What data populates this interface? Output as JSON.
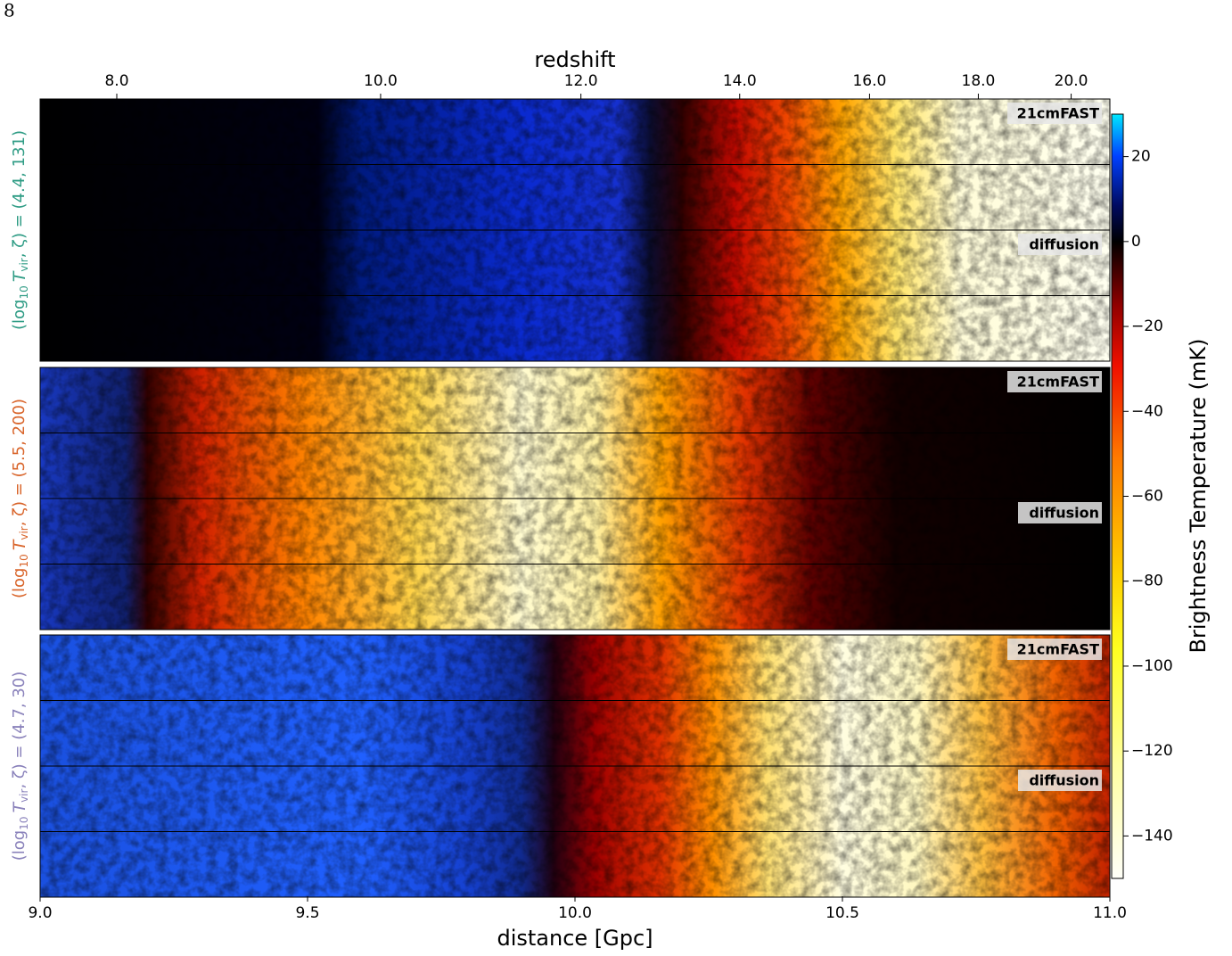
{
  "page_number": "8",
  "figure": {
    "top_axis": {
      "label": "redshift",
      "ticks": [
        {
          "value": 8,
          "label": "8.0"
        },
        {
          "value": 10,
          "label": "10.0"
        },
        {
          "value": 12,
          "label": "12.0"
        },
        {
          "value": 14,
          "label": "14.0"
        },
        {
          "value": 16,
          "label": "16.0"
        },
        {
          "value": 18,
          "label": "18.0"
        },
        {
          "value": 20,
          "label": "20.0"
        }
      ]
    },
    "bottom_axis": {
      "label": "distance [Gpc]",
      "xlim": [
        9,
        11
      ],
      "ticks": [
        {
          "value": 9,
          "label": "9.0"
        },
        {
          "value": 9.5,
          "label": "9.5"
        },
        {
          "value": 10,
          "label": "10.0"
        },
        {
          "value": 10.5,
          "label": "10.5"
        },
        {
          "value": 11,
          "label": "11.0"
        }
      ]
    },
    "colorbar": {
      "label": "Brightness Temperature (mK)",
      "lim": [
        -150,
        30
      ],
      "ticks": [
        {
          "value": 20,
          "label": "20"
        },
        0,
        {
          "value": -20,
          "label": "−20"
        },
        {
          "value": -40,
          "label": "−40"
        },
        {
          "value": -60,
          "label": "−60"
        },
        {
          "value": -80,
          "label": "−80"
        },
        {
          "value": -100,
          "label": "−100"
        },
        {
          "value": -120,
          "label": "−120"
        },
        {
          "value": -140,
          "label": "−140"
        }
      ]
    },
    "ylabel_parts": [
      "(log",
      "10",
      "T",
      "vir",
      ", ζ) = "
    ],
    "tags": [
      "21cmFAST",
      "diffusion"
    ],
    "panels": [
      {
        "params": "(4.4, 131)",
        "color": "#2f9c85"
      },
      {
        "params": "(5.5, 200)",
        "color": "#d9652b"
      },
      {
        "params": "(4.7, 30)",
        "color": "#8a82bb"
      }
    ]
  }
}
